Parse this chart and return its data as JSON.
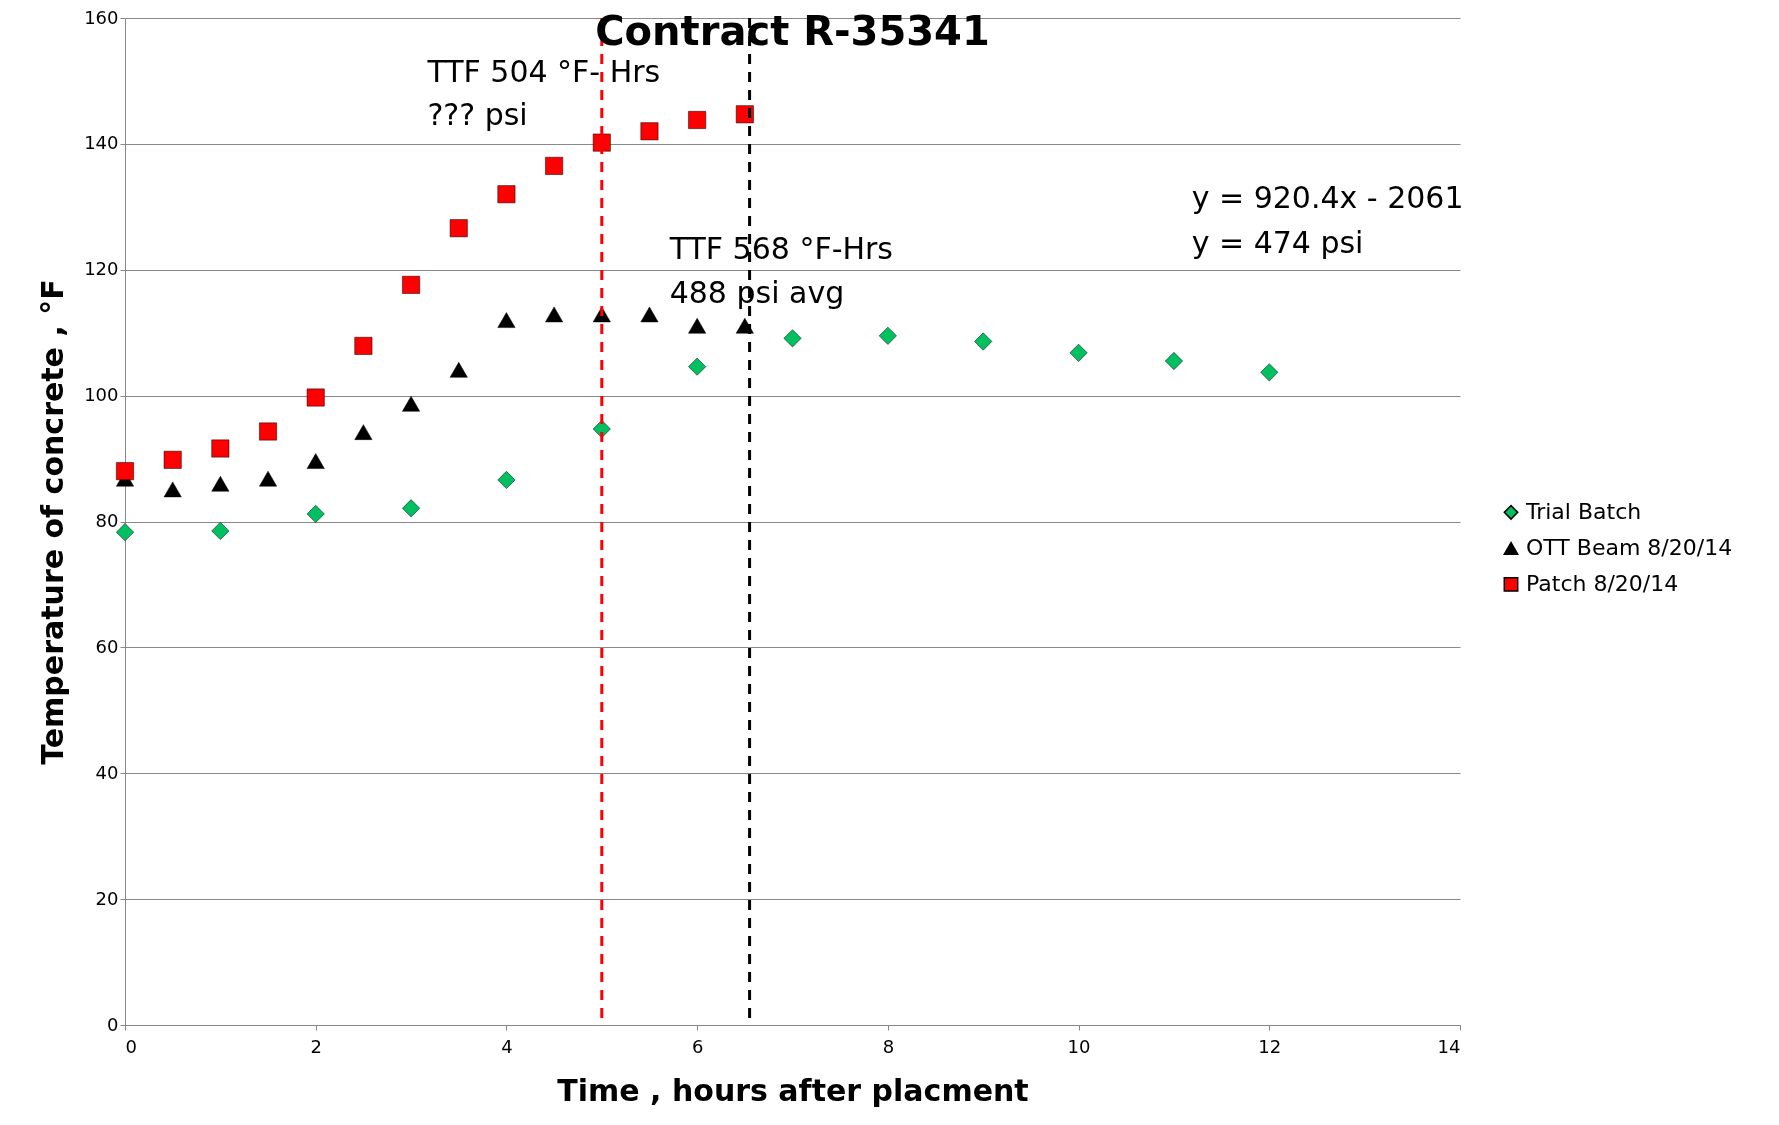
{
  "chart_data": {
    "type": "scatter",
    "title": "Contract R-35341",
    "xlabel": "Time , hours after placment",
    "ylabel": "Temperature of concrete , °F",
    "xlim": [
      0,
      14
    ],
    "xticks": [
      0,
      2,
      4,
      6,
      8,
      10,
      12,
      14
    ],
    "ylim": [
      0,
      160
    ],
    "yticks": [
      0,
      20,
      40,
      60,
      80,
      100,
      120,
      140,
      160
    ],
    "grid": "y",
    "legend": "right",
    "series": [
      {
        "name": "Trial Batch",
        "color": "#00c060",
        "marker": "diamond",
        "x": [
          0,
          1,
          2,
          3,
          4,
          5,
          6,
          7,
          8,
          9,
          10,
          11,
          12
        ],
        "values": [
          78.3,
          78.5,
          81.2,
          82.1,
          86.6,
          94.7,
          104.6,
          109.1,
          109.5,
          108.6,
          106.8,
          105.5,
          103.7
        ]
      },
      {
        "name": "OTT Beam 8/20/14",
        "color": "#000000",
        "marker": "triangle",
        "x": [
          0,
          0.5,
          1,
          1.5,
          2,
          2.5,
          3,
          3.5,
          4,
          4.5,
          5,
          5.5,
          6,
          6.5
        ],
        "values": [
          86.8,
          85.1,
          86.0,
          86.8,
          89.6,
          94.2,
          98.7,
          104.1,
          112.0,
          112.9,
          112.9,
          112.9,
          111.1,
          111.1
        ]
      },
      {
        "name": "Patch 8/20/14",
        "color": "#ff0000",
        "marker": "square",
        "x": [
          0,
          0.5,
          1,
          1.5,
          2,
          2.5,
          3,
          3.5,
          4,
          4.5,
          5,
          5.5,
          6,
          6.5
        ],
        "values": [
          88.0,
          89.8,
          91.6,
          94.3,
          99.7,
          107.9,
          117.6,
          126.6,
          132.0,
          136.5,
          140.2,
          142.0,
          143.8,
          144.7
        ]
      }
    ],
    "ref_lines": [
      {
        "axis": "x",
        "value": 5,
        "color": "#ff0000",
        "line_style": "dashed"
      },
      {
        "axis": "x",
        "value": 6.55,
        "color": "#000000",
        "line_style": "dashed"
      }
    ],
    "annotations": [
      "TTF 504 °F- Hrs",
      "??? psi",
      "TTF 568 °F-Hrs",
      "488 psi avg",
      "y = 920.4x - 2061",
      "y = 474 psi"
    ]
  }
}
